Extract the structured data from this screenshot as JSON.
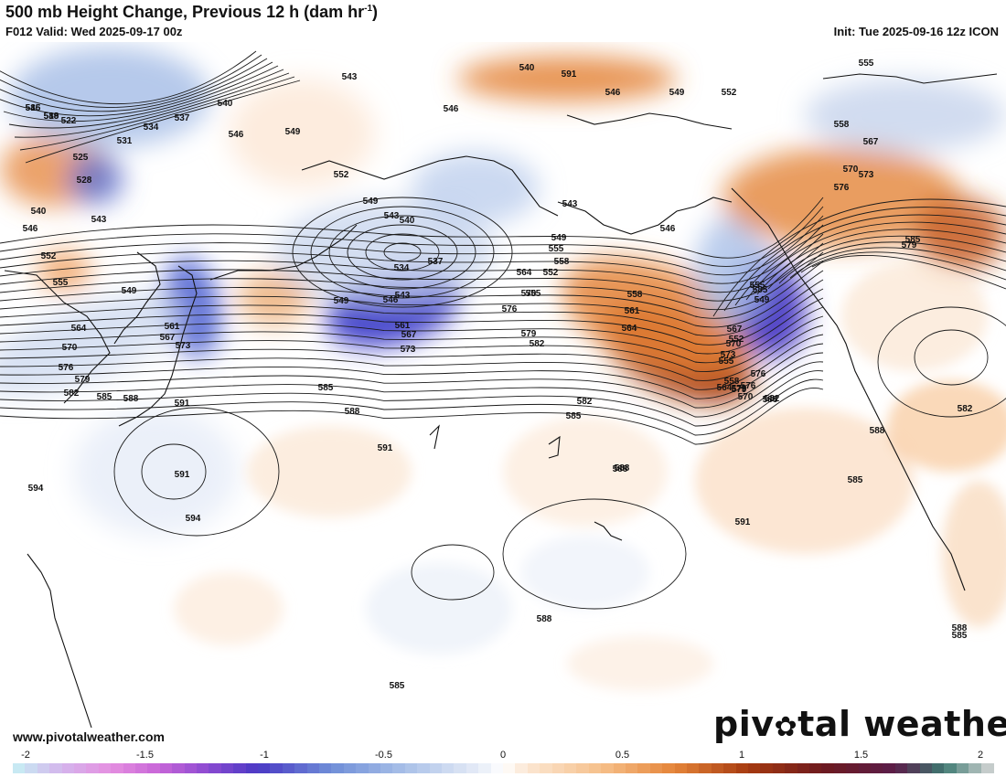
{
  "header": {
    "title": "500 mb Height Change, Previous 12 h (dam hr",
    "title_sup": "-1",
    "title_end": ")",
    "valid": "F012 Valid: Wed 2025-09-17 00z",
    "init": "Init: Tue 2025-09-16 12z ICON"
  },
  "footer": {
    "website": "www.pivotalweather.com",
    "logo_pre": "piv",
    "logo_mid": "✿",
    "logo_post": "tal weather"
  },
  "colorbar": {
    "ticks": [
      "-2",
      "-1.5",
      "-1",
      "-0.5",
      "0",
      "0.5",
      "1",
      "1.5",
      "2"
    ],
    "min": -2,
    "max": 2,
    "stops": [
      {
        "v": -2.0,
        "c": "#c6f0f4"
      },
      {
        "v": -1.8,
        "c": "#d4b5ec"
      },
      {
        "v": -1.6,
        "c": "#e58fe0"
      },
      {
        "v": -1.4,
        "c": "#c765d8"
      },
      {
        "v": -1.2,
        "c": "#8a4ad1"
      },
      {
        "v": -1.0,
        "c": "#4a39c4"
      },
      {
        "v": -0.7,
        "c": "#6f8ed8"
      },
      {
        "v": -0.4,
        "c": "#a9c0e8"
      },
      {
        "v": -0.1,
        "c": "#e6ecf7"
      },
      {
        "v": 0.0,
        "c": "#ffffff"
      },
      {
        "v": 0.1,
        "c": "#fbe6d2"
      },
      {
        "v": 0.4,
        "c": "#f6c08a"
      },
      {
        "v": 0.7,
        "c": "#e48438"
      },
      {
        "v": 1.0,
        "c": "#a63a10"
      },
      {
        "v": 1.3,
        "c": "#6e1a1e"
      },
      {
        "v": 1.6,
        "c": "#5a1d4a"
      },
      {
        "v": 1.8,
        "c": "#3f7a72"
      },
      {
        "v": 2.0,
        "c": "#d8d8d8"
      }
    ]
  },
  "map": {
    "land_color": "#111111",
    "contour_color": "#1a1a1a",
    "contour_labels": [
      "516",
      "519",
      "522",
      "525",
      "528",
      "531",
      "534",
      "537",
      "540",
      "543",
      "546",
      "552",
      "555",
      "549",
      "564",
      "561",
      "567",
      "570",
      "573",
      "576",
      "579",
      "582",
      "585",
      "588",
      "591",
      "594",
      "540",
      "543",
      "546",
      "549",
      "552",
      "540",
      "546",
      "549",
      "552",
      "546",
      "549",
      "543",
      "540",
      "534",
      "537",
      "543",
      "546",
      "549",
      "561",
      "567",
      "573",
      "555",
      "558",
      "564",
      "570",
      "576",
      "579",
      "582",
      "585",
      "588",
      "591",
      "591",
      "594",
      "591",
      "543",
      "546",
      "549",
      "552",
      "555",
      "558",
      "561",
      "564",
      "567",
      "570",
      "573",
      "576",
      "579",
      "582",
      "585",
      "588",
      "588",
      "591",
      "588",
      "588",
      "585",
      "588",
      "585",
      "555",
      "558",
      "567",
      "570",
      "573",
      "576",
      "579",
      "585",
      "582",
      "588",
      "585",
      "585",
      "555",
      "549",
      "552",
      "555",
      "558",
      "564",
      "570",
      "576",
      "579",
      "582",
      "585",
      "588"
    ]
  }
}
